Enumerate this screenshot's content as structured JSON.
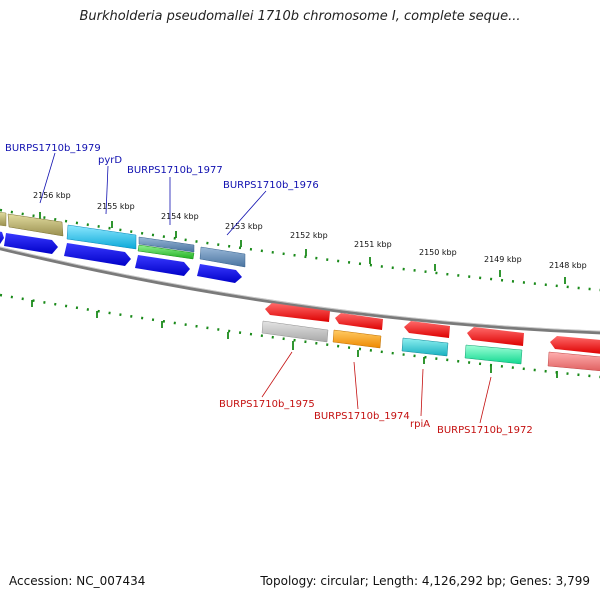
{
  "title": "Burkholderia pseudomallei 1710b chromosome I, complete seque...",
  "footer": {
    "accession": "Accession: NC_007434",
    "topology": "Topology: circular; Length: 4,126,292 bp; Genes: 3,799"
  },
  "colors": {
    "backbone": "#777777",
    "tick": "#1a8a1a",
    "label_blue": "#1010b0",
    "label_red": "#c41010"
  },
  "scale_labels": [
    "2156 kbp",
    "2155 kbp",
    "2154 kbp",
    "2153 kbp",
    "2152 kbp",
    "2151 kbp",
    "2150 kbp",
    "2149 kbp",
    "2148 kbp"
  ],
  "gene_labels_top": [
    "BURPS1710b_1979",
    "pyrD",
    "BURPS1710b_1977",
    "BURPS1710b_1976"
  ],
  "gene_labels_bottom": [
    "BURPS1710b_1975",
    "BURPS1710b_1974",
    "rpiA",
    "BURPS1710b_1972"
  ]
}
